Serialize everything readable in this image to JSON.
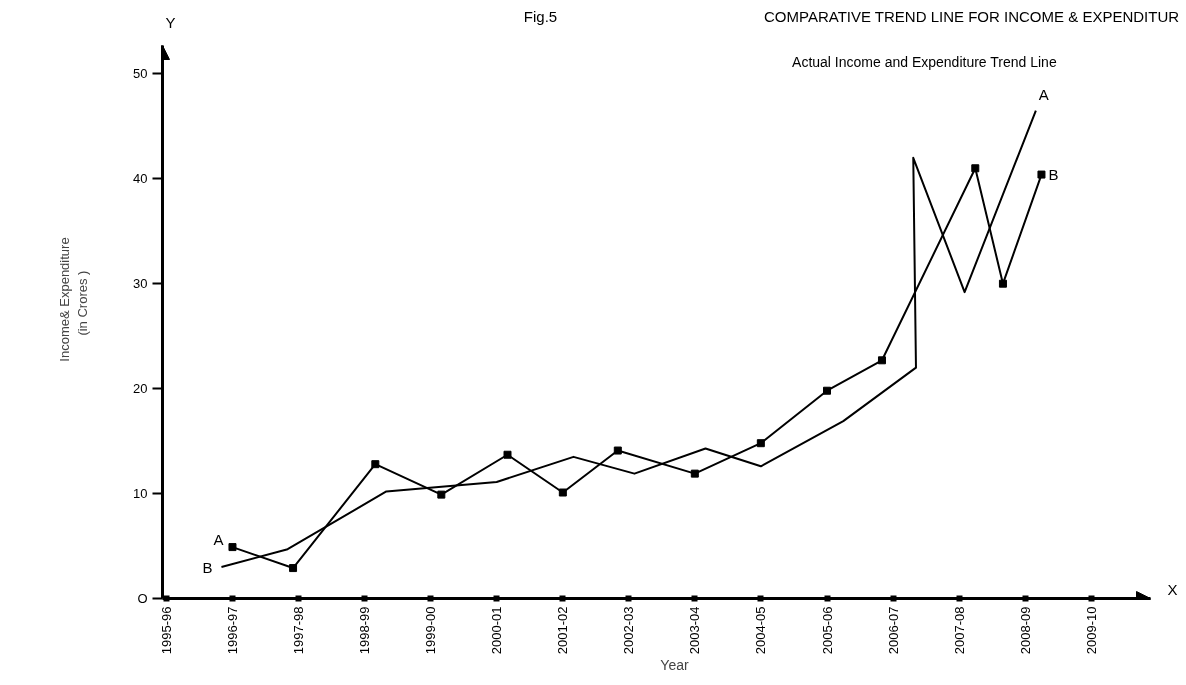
{
  "chart_data": {
    "type": "line",
    "title": "COMPARATIVE  TREND LINE FOR INCOME & EXPENDITUR",
    "subtitle": "Actual Income and Expenditure Trend Line",
    "xlabel": "Year",
    "ylabel": "Income& Expenditure\n(in  Crores  )",
    "annotations": [
      "Fig.5",
      "Y",
      "X",
      "A",
      "B",
      "A",
      "B"
    ],
    "series": [
      {
        "color": "#000000",
        "marker": "square",
        "x": [
          "1996-01",
          "1996-12",
          "1998-03",
          "1999-03",
          "2000-03",
          "2001-01",
          "2001-11",
          "2003-01",
          "2004-01",
          "2005-01",
          "2005-11",
          "2007-04",
          "2007-09",
          "2008-04"
        ],
        "values": [
          4.9,
          2.9,
          12.8,
          9.9,
          13.7,
          10.1,
          14.1,
          11.9,
          14.8,
          19.8,
          22.7,
          41.0,
          30.0,
          40.4
        ]
      },
      {
        "color": "#000000",
        "marker": "none",
        "x": [
          "1995-11",
          "1996-11",
          "1998-05",
          "2000-01",
          "2001-03",
          "2002-02",
          "2003-03",
          "2004-01",
          "2005-04",
          "2006-05-08",
          "2006-04-23",
          "2007-02",
          "2008-03"
        ],
        "values": [
          3.0,
          4.7,
          10.2,
          11.1,
          13.5,
          11.9,
          14.3,
          12.6,
          16.9,
          22.0,
          42.0,
          29.2,
          46.5
        ]
      }
    ],
    "xlim": [
      "1994-12-10",
      "2009-11-25"
    ],
    "ylim": [
      0,
      52.7
    ],
    "xticks": [
      {
        "value": "1995",
        "label": "1995-96"
      },
      {
        "value": "1996",
        "label": "1996-97"
      },
      {
        "value": "1997",
        "label": "1997-98"
      },
      {
        "value": "1998",
        "label": "1998-99"
      },
      {
        "value": "1999",
        "label": "1999-00"
      },
      {
        "value": "2000",
        "label": "2000-01"
      },
      {
        "value": "2001",
        "label": "2001-02"
      },
      {
        "value": "2002",
        "label": "2002-03"
      },
      {
        "value": "2003",
        "label": "2003-04"
      },
      {
        "value": "2004",
        "label": "2004-05"
      },
      {
        "value": "2005",
        "label": "2005-06"
      },
      {
        "value": "2006",
        "label": "2006-07"
      },
      {
        "value": "2007",
        "label": "2007-08"
      },
      {
        "value": "2008",
        "label": "2008-09"
      },
      {
        "value": "2009",
        "label": "2009-10"
      }
    ],
    "yticks": [
      {
        "value": 0,
        "label": "O"
      },
      10,
      20,
      30,
      40,
      50
    ],
    "grid": false,
    "line_style": "solid"
  }
}
